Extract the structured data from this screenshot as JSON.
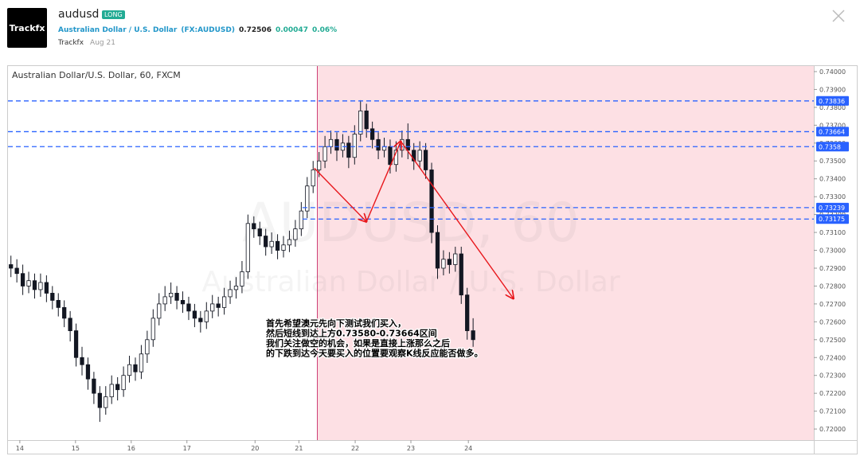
{
  "header": {
    "logo": "Trackfx",
    "title": "audusd",
    "tag": "LONG",
    "symbol_name": "Australian Dollar / U.S. Dollar",
    "symbol": "(FX:AUDUSD)",
    "price": "0.72506",
    "change": "0.00047",
    "change_pct": "0.06%",
    "author": "Trackfx",
    "date": "Aug 21"
  },
  "chart_data": {
    "type": "candlestick",
    "legend_text": "Australian Dollar/U.S. Dollar, 60, FXCM",
    "watermark": "AUDUSD, 60",
    "watermark_sub": "Australian Dollar / U.S. Dollar",
    "annotation_lines": [
      "首先希望澳元先向下测试我们买入，",
      "然后短线到达上方0.73580-0.73664区间",
      "我们关注做空的机会，如果是直接上涨那么之后",
      "的下跌到达今天要买入的位置要观察K线反应能否做多。"
    ],
    "up_color": "#ffffff",
    "down_color": "#131722",
    "wick_color": "#131722",
    "xlim": [
      0,
      136
    ],
    "xticks": [
      {
        "value": 2.0,
        "label": "14"
      },
      {
        "value": 11.4,
        "label": "15"
      },
      {
        "value": 20.8,
        "label": "16"
      },
      {
        "value": 30.2,
        "label": "17"
      },
      {
        "value": 41.7,
        "label": "20"
      },
      {
        "value": 49.1,
        "label": "21"
      },
      {
        "value": 58.6,
        "label": "22"
      },
      {
        "value": 68.0,
        "label": "23"
      },
      {
        "value": 77.7,
        "label": "24"
      }
    ],
    "ylim": [
      0.71938,
      0.74031
    ],
    "yticks": [
      {
        "value": 0.72,
        "label": "0.72000"
      },
      {
        "value": 0.721,
        "label": "0.72100"
      },
      {
        "value": 0.722,
        "label": "0.72200"
      },
      {
        "value": 0.723,
        "label": "0.72300"
      },
      {
        "value": 0.724,
        "label": "0.72400"
      },
      {
        "value": 0.725,
        "label": "0.72500"
      },
      {
        "value": 0.726,
        "label": "0.72600"
      },
      {
        "value": 0.727,
        "label": "0.72700"
      },
      {
        "value": 0.728,
        "label": "0.72800"
      },
      {
        "value": 0.729,
        "label": "0.72900"
      },
      {
        "value": 0.73,
        "label": "0.73000"
      },
      {
        "value": 0.731,
        "label": "0.73100"
      },
      {
        "value": 0.732,
        "label": "0.73200"
      },
      {
        "value": 0.733,
        "label": "0.73300"
      },
      {
        "value": 0.734,
        "label": "0.73400"
      },
      {
        "value": 0.735,
        "label": "0.73500"
      },
      {
        "value": 0.736,
        "label": "0.73600"
      },
      {
        "value": 0.737,
        "label": "0.73700"
      },
      {
        "value": 0.738,
        "label": "0.73800"
      },
      {
        "value": 0.739,
        "label": "0.73900"
      },
      {
        "value": 0.74,
        "label": "0.74000"
      }
    ],
    "ohlc": [
      [
        0.7292,
        0.7297,
        0.7285,
        0.729
      ],
      [
        0.729,
        0.7295,
        0.7282,
        0.7287
      ],
      [
        0.7287,
        0.7292,
        0.7275,
        0.728
      ],
      [
        0.728,
        0.7288,
        0.7276,
        0.7283
      ],
      [
        0.7283,
        0.7287,
        0.7273,
        0.7278
      ],
      [
        0.7278,
        0.7287,
        0.7274,
        0.7282
      ],
      [
        0.7282,
        0.7286,
        0.7271,
        0.7276
      ],
      [
        0.7276,
        0.728,
        0.7267,
        0.7272
      ],
      [
        0.7272,
        0.7276,
        0.7263,
        0.7268
      ],
      [
        0.7268,
        0.7272,
        0.7257,
        0.7262
      ],
      [
        0.7262,
        0.7266,
        0.7249,
        0.7255
      ],
      [
        0.7255,
        0.7259,
        0.7235,
        0.724
      ],
      [
        0.724,
        0.7246,
        0.723,
        0.7236
      ],
      [
        0.7236,
        0.724,
        0.7222,
        0.7228
      ],
      [
        0.7228,
        0.7232,
        0.7214,
        0.722
      ],
      [
        0.722,
        0.7224,
        0.7204,
        0.7212
      ],
      [
        0.7212,
        0.7224,
        0.7208,
        0.7218
      ],
      [
        0.7218,
        0.723,
        0.7214,
        0.7225
      ],
      [
        0.7225,
        0.7229,
        0.7216,
        0.7222
      ],
      [
        0.7222,
        0.7235,
        0.7218,
        0.723
      ],
      [
        0.723,
        0.7241,
        0.7226,
        0.7236
      ],
      [
        0.7236,
        0.724,
        0.7227,
        0.7232
      ],
      [
        0.7232,
        0.7247,
        0.7228,
        0.7242
      ],
      [
        0.7242,
        0.7255,
        0.7237,
        0.725
      ],
      [
        0.725,
        0.7267,
        0.7246,
        0.7262
      ],
      [
        0.7262,
        0.7276,
        0.7258,
        0.727
      ],
      [
        0.727,
        0.728,
        0.7266,
        0.7274
      ],
      [
        0.7274,
        0.7282,
        0.727,
        0.7276
      ],
      [
        0.7276,
        0.728,
        0.7267,
        0.7272
      ],
      [
        0.7272,
        0.7277,
        0.7265,
        0.727
      ],
      [
        0.727,
        0.7274,
        0.7261,
        0.7266
      ],
      [
        0.7266,
        0.727,
        0.7257,
        0.7262
      ],
      [
        0.7262,
        0.7266,
        0.7254,
        0.726
      ],
      [
        0.726,
        0.7271,
        0.7256,
        0.7266
      ],
      [
        0.7266,
        0.7275,
        0.7262,
        0.727
      ],
      [
        0.727,
        0.7274,
        0.7263,
        0.7268
      ],
      [
        0.7268,
        0.7279,
        0.7264,
        0.7274
      ],
      [
        0.7274,
        0.7283,
        0.727,
        0.7278
      ],
      [
        0.7278,
        0.7285,
        0.7273,
        0.728
      ],
      [
        0.728,
        0.7294,
        0.7276,
        0.7288
      ],
      [
        0.7288,
        0.732,
        0.7284,
        0.7315
      ],
      [
        0.7315,
        0.7319,
        0.7307,
        0.7312
      ],
      [
        0.7312,
        0.7316,
        0.7303,
        0.7308
      ],
      [
        0.7308,
        0.7312,
        0.7297,
        0.7302
      ],
      [
        0.7302,
        0.731,
        0.7298,
        0.7305
      ],
      [
        0.7305,
        0.7309,
        0.7295,
        0.73
      ],
      [
        0.73,
        0.7308,
        0.7296,
        0.7303
      ],
      [
        0.7303,
        0.7311,
        0.7299,
        0.7306
      ],
      [
        0.7306,
        0.7317,
        0.7302,
        0.7312
      ],
      [
        0.7312,
        0.7327,
        0.7308,
        0.7322
      ],
      [
        0.7322,
        0.7341,
        0.7318,
        0.7336
      ],
      [
        0.7336,
        0.735,
        0.7332,
        0.7345
      ],
      [
        0.7345,
        0.7355,
        0.7341,
        0.735
      ],
      [
        0.735,
        0.7364,
        0.7346,
        0.7358
      ],
      [
        0.7358,
        0.7367,
        0.7354,
        0.7362
      ],
      [
        0.7362,
        0.7366,
        0.735,
        0.7356
      ],
      [
        0.7356,
        0.7365,
        0.7352,
        0.736
      ],
      [
        0.736,
        0.7364,
        0.7346,
        0.7352
      ],
      [
        0.7352,
        0.737,
        0.7348,
        0.7365
      ],
      [
        0.7365,
        0.7384,
        0.7361,
        0.7378
      ],
      [
        0.7378,
        0.7382,
        0.7363,
        0.7368
      ],
      [
        0.7368,
        0.7372,
        0.7357,
        0.7362
      ],
      [
        0.7362,
        0.7366,
        0.7351,
        0.7356
      ],
      [
        0.7356,
        0.7363,
        0.7352,
        0.7358
      ],
      [
        0.7358,
        0.7362,
        0.7343,
        0.7348
      ],
      [
        0.7348,
        0.7361,
        0.7344,
        0.7356
      ],
      [
        0.7356,
        0.7367,
        0.7352,
        0.7362
      ],
      [
        0.7362,
        0.7371,
        0.7351,
        0.7356
      ],
      [
        0.7356,
        0.736,
        0.7345,
        0.735
      ],
      [
        0.735,
        0.7361,
        0.7346,
        0.7356
      ],
      [
        0.7356,
        0.736,
        0.734,
        0.7345
      ],
      [
        0.7345,
        0.7349,
        0.7304,
        0.731
      ],
      [
        0.731,
        0.7314,
        0.7284,
        0.729
      ],
      [
        0.729,
        0.73,
        0.7286,
        0.7295
      ],
      [
        0.7295,
        0.7299,
        0.7287,
        0.7292
      ],
      [
        0.7292,
        0.7302,
        0.7288,
        0.7298
      ],
      [
        0.7298,
        0.7302,
        0.727,
        0.7275
      ],
      [
        0.7275,
        0.7279,
        0.725,
        0.7255
      ],
      [
        0.7255,
        0.7262,
        0.7246,
        0.725
      ]
    ],
    "levels": [
      {
        "price": 0.73836,
        "from_x": 0
      },
      {
        "price": 0.73664,
        "from_x": 0
      },
      {
        "price": 0.7358,
        "from_x": 0
      },
      {
        "price": 0.73239,
        "from_x": 49.7
      },
      {
        "price": 0.73175,
        "from_x": 49.7
      }
    ],
    "level_color": "#2962ff",
    "shade_from_x": 52.2,
    "shade_color": "#fde0e4",
    "arrow_color": "#e8171c",
    "arrows": [
      {
        "x": [
          51.7,
          60.5
        ],
        "y": [
          0.7346,
          0.7316
        ]
      },
      {
        "x": [
          60.5,
          66.3
        ],
        "y": [
          0.7316,
          0.7361
        ]
      },
      {
        "x": [
          66.3,
          85.3
        ],
        "y": [
          0.7361,
          0.7273
        ]
      }
    ]
  }
}
